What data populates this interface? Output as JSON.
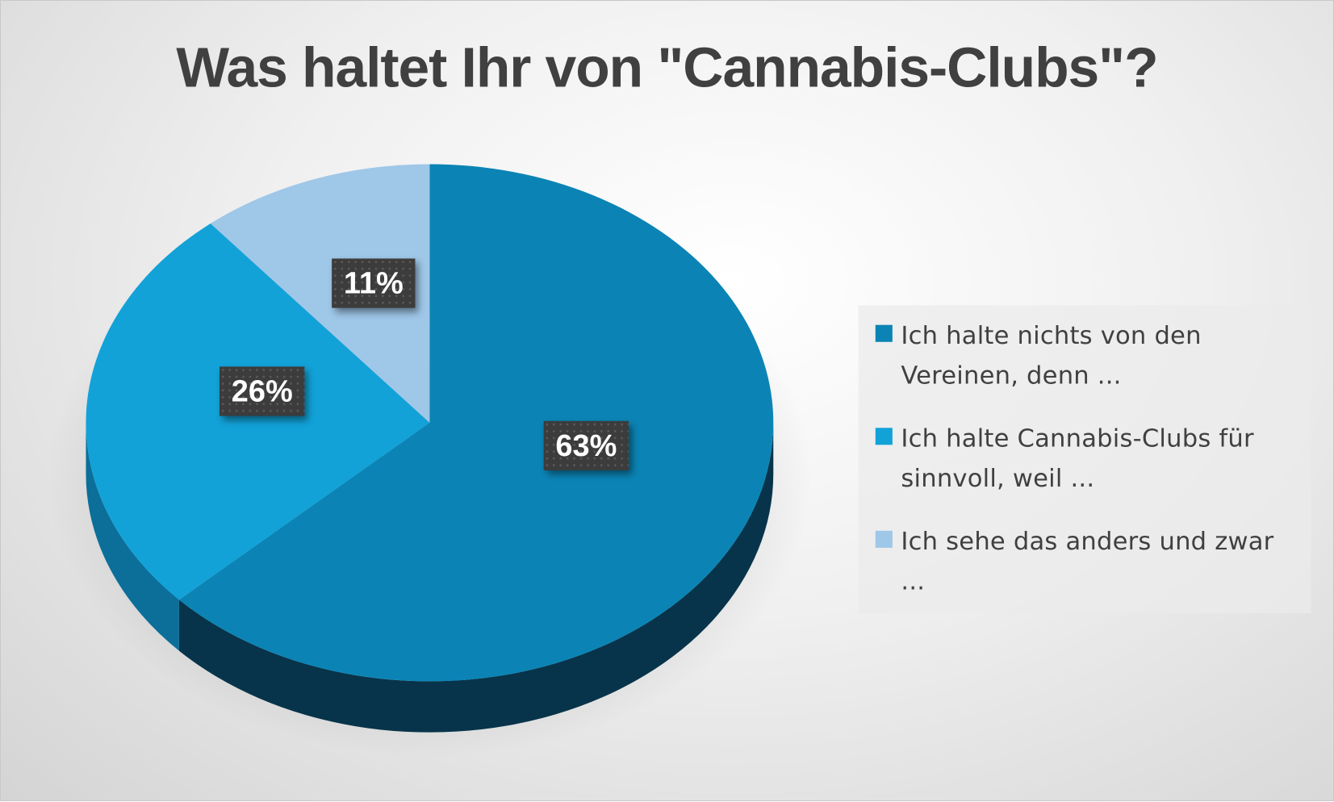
{
  "chart_data": {
    "type": "pie",
    "title": "Was haltet Ihr von \"Cannabis-Clubs\"?",
    "style": "3d",
    "legend_placement": "right",
    "slices": [
      {
        "label": "Ich halte nichts von den Vereinen, denn ...",
        "value": 63,
        "data_label": "63%",
        "color": "#0b84b5",
        "side_color": "#07344a"
      },
      {
        "label": "Ich halte Cannabis-Clubs für sinnvoll, weil ...",
        "value": 26,
        "data_label": "26%",
        "color": "#12a2d8",
        "side_color": "#0b6f99"
      },
      {
        "label": "Ich sehe das anders und zwar ...",
        "value": 11,
        "data_label": "11%",
        "color": "#9fc7e8",
        "side_color": "#7aa5c8"
      }
    ]
  }
}
